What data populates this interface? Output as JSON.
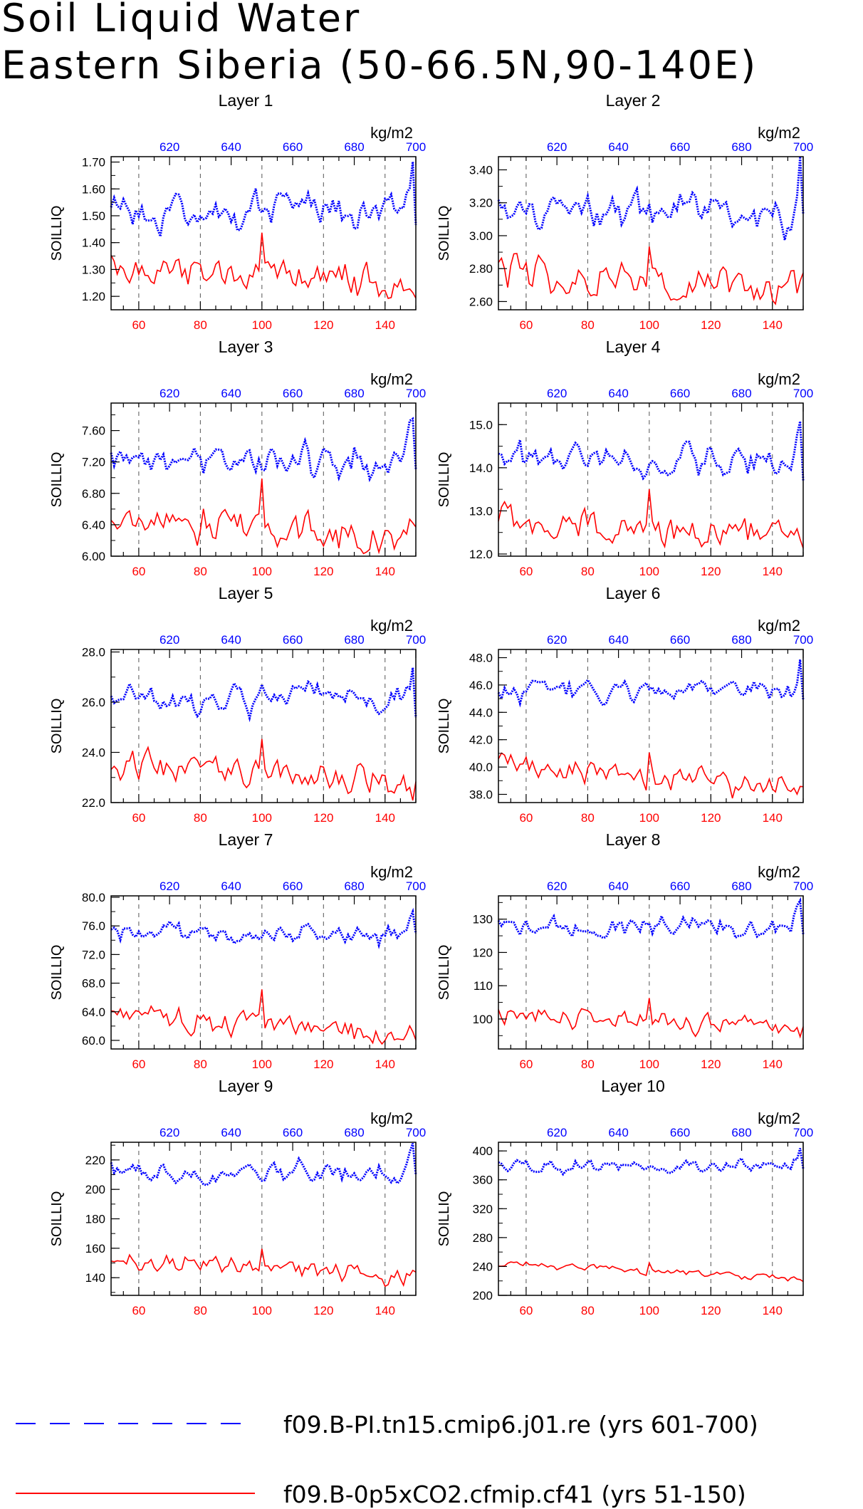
{
  "title": {
    "line1": "Soil Liquid Water",
    "line2": "Eastern Siberia (50-66.5N,90-140E)"
  },
  "colors": {
    "blue": "#0000ff",
    "red": "#ff0000",
    "axis": "#000000",
    "grid": "#555555"
  },
  "chart_data": {
    "type": "line",
    "ylabel": "SOILLIQ",
    "top_unit": "kg/m2",
    "bottom_axis": {
      "range": [
        51,
        150
      ],
      "ticks": [
        60,
        80,
        100,
        120,
        140
      ]
    },
    "top_axis": {
      "range": [
        601,
        700
      ],
      "ticks": [
        620,
        640,
        660,
        680,
        700
      ]
    },
    "series": [
      {
        "name": "f09.B-PI.tn15.cmip6.j01.re (yrs 601-700)",
        "color": "#0000ff",
        "style": "dashed",
        "axis": "top"
      },
      {
        "name": "f09.B-0p5xCO2.cfmip.cf41 (yrs 51-150)",
        "color": "#ff0000",
        "style": "solid",
        "axis": "bottom"
      }
    ],
    "panels": [
      {
        "title": "Layer 1",
        "ylim": [
          1.15,
          1.72
        ],
        "yticks": [
          1.2,
          1.3,
          1.4,
          1.5,
          1.6,
          1.7
        ],
        "decimals": 2,
        "blue_base": 1.52,
        "blue_amp": 0.045,
        "red_start": 1.31,
        "red_end": 1.24,
        "red_amp": 0.045,
        "end_peak": 0.15
      },
      {
        "title": "Layer 2",
        "ylim": [
          2.55,
          3.48
        ],
        "yticks": [
          2.6,
          2.8,
          3.0,
          3.2,
          3.4
        ],
        "decimals": 2,
        "blue_base": 3.14,
        "blue_amp": 0.075,
        "red_start": 2.78,
        "red_end": 2.68,
        "red_amp": 0.08,
        "end_peak": 0.25
      },
      {
        "title": "Layer 3",
        "ylim": [
          6.0,
          7.95
        ],
        "yticks": [
          6.0,
          6.4,
          6.8,
          7.2,
          7.6
        ],
        "decimals": 2,
        "blue_base": 7.22,
        "blue_amp": 0.14,
        "red_start": 6.5,
        "red_end": 6.25,
        "red_amp": 0.18,
        "end_peak": 0.55
      },
      {
        "title": "Layer 4",
        "ylim": [
          11.95,
          15.5
        ],
        "yticks": [
          12.0,
          13.0,
          14.0,
          15.0
        ],
        "decimals": 1,
        "blue_base": 14.2,
        "blue_amp": 0.22,
        "red_start": 12.85,
        "red_end": 12.35,
        "red_amp": 0.28,
        "end_peak": 0.9
      },
      {
        "title": "Layer 5",
        "ylim": [
          22.0,
          28.1
        ],
        "yticks": [
          22.0,
          24.0,
          26.0,
          28.0
        ],
        "decimals": 1,
        "blue_base": 26.1,
        "blue_amp": 0.35,
        "red_start": 23.6,
        "red_end": 22.8,
        "red_amp": 0.45,
        "end_peak": 1.4
      },
      {
        "title": "Layer 6",
        "ylim": [
          37.4,
          48.6
        ],
        "yticks": [
          38.0,
          40.0,
          42.0,
          44.0,
          46.0,
          48.0
        ],
        "decimals": 1,
        "blue_base": 45.4,
        "blue_amp": 0.55,
        "red_start": 40.0,
        "red_end": 38.3,
        "red_amp": 0.8,
        "end_peak": 2.5
      },
      {
        "title": "Layer 7",
        "ylim": [
          58.8,
          80.2
        ],
        "yticks": [
          60.0,
          64.0,
          68.0,
          72.0,
          76.0,
          80.0
        ],
        "decimals": 1,
        "blue_base": 74.8,
        "blue_amp": 1.0,
        "red_start": 63.5,
        "red_end": 60.8,
        "red_amp": 1.3,
        "end_peak": 3.5
      },
      {
        "title": "Layer 8",
        "ylim": [
          91,
          137
        ],
        "yticks": [
          100,
          110,
          120,
          130
        ],
        "decimals": 0,
        "blue_base": 127.5,
        "blue_amp": 2.0,
        "red_start": 101.5,
        "red_end": 97.5,
        "red_amp": 2.2,
        "end_peak": 7
      },
      {
        "title": "Layer 9",
        "ylim": [
          128,
          232
        ],
        "yticks": [
          140,
          160,
          180,
          200,
          220
        ],
        "decimals": 0,
        "blue_base": 211,
        "blue_amp": 4.5,
        "red_start": 153,
        "red_end": 142,
        "red_amp": 5,
        "end_peak": 15
      },
      {
        "title": "Layer 10",
        "ylim": [
          200,
          412
        ],
        "yticks": [
          200,
          240,
          280,
          320,
          360,
          400
        ],
        "decimals": 0,
        "blue_base": 378,
        "blue_amp": 6,
        "red_start": 245,
        "red_end": 222,
        "red_amp": 4,
        "end_peak": 22
      }
    ]
  }
}
